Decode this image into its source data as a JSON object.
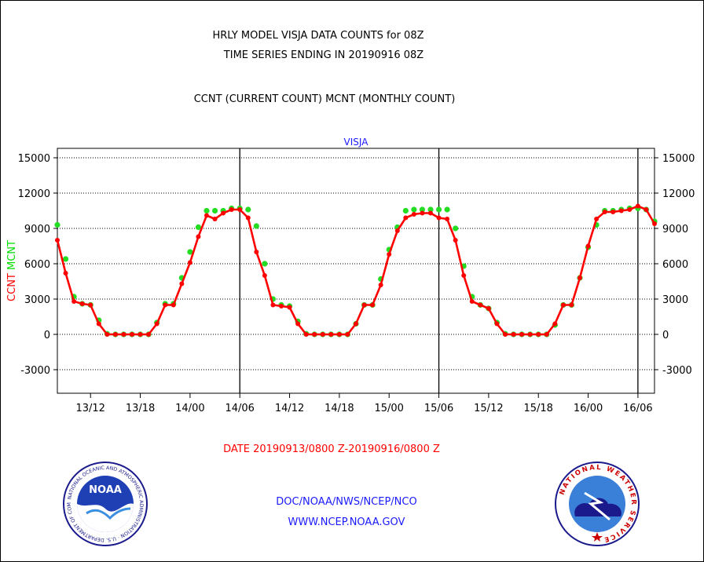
{
  "header": {
    "line1": "HRLY MODEL VISJA DATA COUNTS for 08Z",
    "line2": "TIME SERIES ENDING IN 20190916 08Z",
    "line3": "CCNT (CURRENT COUNT) MCNT (MONTHLY COUNT)"
  },
  "footer": {
    "date_range": "DATE 20190913/0800 Z-20190916/0800 Z",
    "org": "DOC/NOAA/NWS/NCEP/NCO",
    "url": "WWW.NCEP.NOAA.GOV"
  },
  "logos": {
    "noaa": {
      "label": "NOAA",
      "ring_text": "NATIONAL OCEANIC AND ATMOSPHERIC ADMINISTRATION · U.S. DEPARTMENT OF COMMERCE"
    },
    "nws": {
      "ring_text": "NATIONAL WEATHER SERVICE"
    }
  },
  "chart_data": {
    "type": "line",
    "title": "VISJA",
    "ylabel_parts": [
      {
        "text": "CCNT",
        "color": "#ff0000"
      },
      {
        "text": "MCNT",
        "color": "#00dd00"
      }
    ],
    "ylim": [
      -5000,
      15800
    ],
    "yticks": [
      -3000,
      0,
      3000,
      6000,
      9000,
      12000,
      15000
    ],
    "xlim": [
      0,
      72
    ],
    "xticks": [
      {
        "x": 4,
        "label": "13/12"
      },
      {
        "x": 10,
        "label": "13/18"
      },
      {
        "x": 16,
        "label": "14/00"
      },
      {
        "x": 22,
        "label": "14/06"
      },
      {
        "x": 28,
        "label": "14/12"
      },
      {
        "x": 34,
        "label": "14/18"
      },
      {
        "x": 40,
        "label": "15/00"
      },
      {
        "x": 46,
        "label": "15/06"
      },
      {
        "x": 52,
        "label": "15/12"
      },
      {
        "x": 58,
        "label": "15/18"
      },
      {
        "x": 64,
        "label": "16/00"
      },
      {
        "x": 70,
        "label": "16/06"
      }
    ],
    "day_lines": [
      22,
      46,
      70
    ],
    "grid": true,
    "series": [
      {
        "name": "CCNT",
        "color": "#ff0000",
        "values": [
          8000,
          5200,
          2800,
          2600,
          2500,
          900,
          0,
          0,
          0,
          0,
          0,
          0,
          900,
          2500,
          2500,
          4300,
          6100,
          8300,
          10100,
          9800,
          10300,
          10600,
          10600,
          9900,
          7000,
          5000,
          2500,
          2400,
          2300,
          900,
          0,
          0,
          0,
          0,
          0,
          0,
          900,
          2500,
          2500,
          4200,
          6800,
          8800,
          9900,
          10200,
          10300,
          10300,
          9900,
          9800,
          8000,
          5000,
          2800,
          2500,
          2200,
          900,
          0,
          0,
          0,
          0,
          0,
          0,
          900,
          2500,
          2500,
          4800,
          7500,
          9800,
          10400,
          10400,
          10500,
          10600,
          10900,
          10600,
          9400
        ]
      },
      {
        "name": "MCNT",
        "color": "#22dd22",
        "values": [
          9300,
          6400,
          3200,
          2600,
          2500,
          1200,
          50,
          0,
          0,
          0,
          0,
          0,
          1000,
          2600,
          2600,
          4800,
          7000,
          9100,
          10500,
          10500,
          10500,
          10700,
          10700,
          10600,
          9200,
          6000,
          3000,
          2500,
          2400,
          1100,
          50,
          0,
          0,
          0,
          0,
          0,
          900,
          2500,
          2500,
          4700,
          7200,
          9100,
          10500,
          10600,
          10600,
          10600,
          10600,
          10600,
          9000,
          5800,
          3200,
          2500,
          2200,
          1000,
          50,
          0,
          0,
          0,
          0,
          0,
          800,
          2500,
          2500,
          4800,
          7400,
          9300,
          10500,
          10500,
          10600,
          10700,
          10700,
          10600,
          9600
        ]
      }
    ]
  }
}
